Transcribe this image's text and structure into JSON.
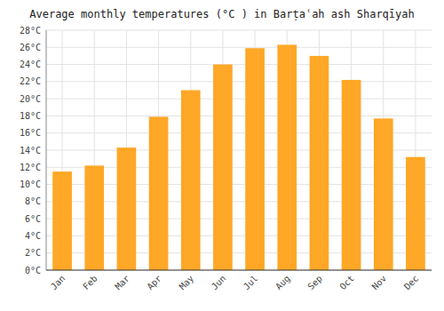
{
  "chart_data": {
    "type": "bar",
    "title": "Average monthly temperatures (°C ) in Barṭaʿah ash Sharqīyah",
    "categories": [
      "Jan",
      "Feb",
      "Mar",
      "Apr",
      "May",
      "Jun",
      "Jul",
      "Aug",
      "Sep",
      "Oct",
      "Nov",
      "Dec"
    ],
    "values": [
      11.5,
      12.2,
      14.3,
      17.9,
      21.0,
      24.0,
      25.9,
      26.3,
      25.0,
      22.2,
      17.7,
      13.2
    ],
    "color": "#FFA726",
    "ylim": [
      0,
      28
    ],
    "yticks": [
      {
        "value": 0,
        "label": "0°C"
      },
      {
        "value": 2,
        "label": "2°C"
      },
      {
        "value": 4,
        "label": "4°C"
      },
      {
        "value": 6,
        "label": "6°C"
      },
      {
        "value": 8,
        "label": "8°C"
      },
      {
        "value": 10,
        "label": "10°C"
      },
      {
        "value": 12,
        "label": "12°C"
      },
      {
        "value": 14,
        "label": "14°C"
      },
      {
        "value": 16,
        "label": "16°C"
      },
      {
        "value": 18,
        "label": "18°C"
      },
      {
        "value": 20,
        "label": "20°C"
      },
      {
        "value": 22,
        "label": "22°C"
      },
      {
        "value": 24,
        "label": "24°C"
      },
      {
        "value": 26,
        "label": "26°C"
      },
      {
        "value": 28,
        "label": "28°C"
      }
    ],
    "grid": true
  }
}
